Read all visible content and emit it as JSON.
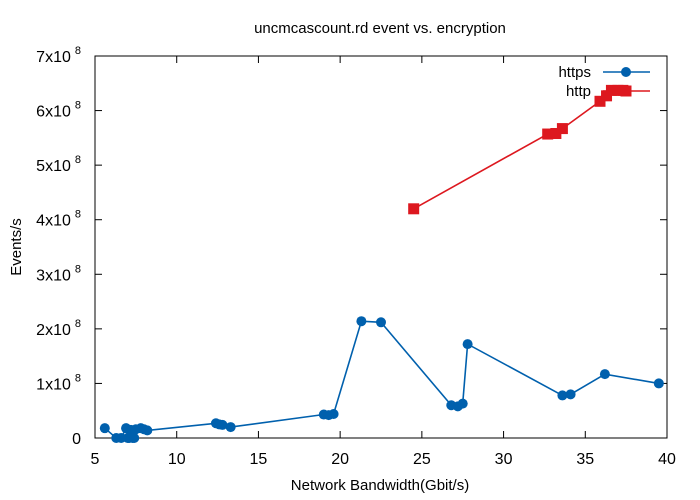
{
  "chart_data": {
    "type": "line",
    "title": "uncmcascount.rd event vs. encryption",
    "xlabel": "Network Bandwidth(Gbit/s)",
    "ylabel": "Events/s",
    "xlim": [
      5,
      40
    ],
    "ylim": [
      0,
      700000000
    ],
    "x_ticks": [
      {
        "value": 5,
        "label": "5"
      },
      {
        "value": 10,
        "label": "10"
      },
      {
        "value": 15,
        "label": "15"
      },
      {
        "value": 20,
        "label": "20"
      },
      {
        "value": 25,
        "label": "25"
      },
      {
        "value": 30,
        "label": "30"
      },
      {
        "value": 35,
        "label": "35"
      },
      {
        "value": 40,
        "label": "40"
      }
    ],
    "y_ticks": [
      {
        "value": 0,
        "mantissa": "0",
        "exp": ""
      },
      {
        "value": 100000000,
        "mantissa": "1x10",
        "exp": "8"
      },
      {
        "value": 200000000,
        "mantissa": "2x10",
        "exp": "8"
      },
      {
        "value": 300000000,
        "mantissa": "3x10",
        "exp": "8"
      },
      {
        "value": 400000000,
        "mantissa": "4x10",
        "exp": "8"
      },
      {
        "value": 500000000,
        "mantissa": "5x10",
        "exp": "8"
      },
      {
        "value": 600000000,
        "mantissa": "6x10",
        "exp": "8"
      },
      {
        "value": 700000000,
        "mantissa": "7x10",
        "exp": "8"
      }
    ],
    "grid": false,
    "legend_position": "top-right",
    "series": [
      {
        "name": "https",
        "color": "#0060ad",
        "marker": "circle",
        "points": [
          [
            5.6,
            18000000
          ],
          [
            6.3,
            0
          ],
          [
            6.6,
            0
          ],
          [
            6.9,
            18000000
          ],
          [
            7.0,
            0
          ],
          [
            7.1,
            0
          ],
          [
            7.2,
            15000000
          ],
          [
            7.3,
            0
          ],
          [
            7.4,
            0
          ],
          [
            7.5,
            16000000
          ],
          [
            7.8,
            18000000
          ],
          [
            8.0,
            16000000
          ],
          [
            8.2,
            14000000
          ],
          [
            12.4,
            27000000
          ],
          [
            12.6,
            25000000
          ],
          [
            12.8,
            24000000
          ],
          [
            13.3,
            20000000
          ],
          [
            19.0,
            43000000
          ],
          [
            19.3,
            42000000
          ],
          [
            19.6,
            44000000
          ],
          [
            21.3,
            214000000
          ],
          [
            22.5,
            212000000
          ],
          [
            26.8,
            60000000
          ],
          [
            27.2,
            58000000
          ],
          [
            27.5,
            63000000
          ],
          [
            27.8,
            172000000
          ],
          [
            33.6,
            78000000
          ],
          [
            34.1,
            80000000
          ],
          [
            36.2,
            117000000
          ],
          [
            39.5,
            100000000
          ]
        ]
      },
      {
        "name": "http",
        "color": "#dd181f",
        "marker": "square",
        "points": [
          [
            24.5,
            420000000
          ],
          [
            32.7,
            557000000
          ],
          [
            33.2,
            558000000
          ],
          [
            33.6,
            567000000
          ],
          [
            35.9,
            617000000
          ],
          [
            36.3,
            627000000
          ],
          [
            36.6,
            637000000
          ],
          [
            37.0,
            637000000
          ],
          [
            37.3,
            637000000
          ]
        ]
      }
    ]
  }
}
